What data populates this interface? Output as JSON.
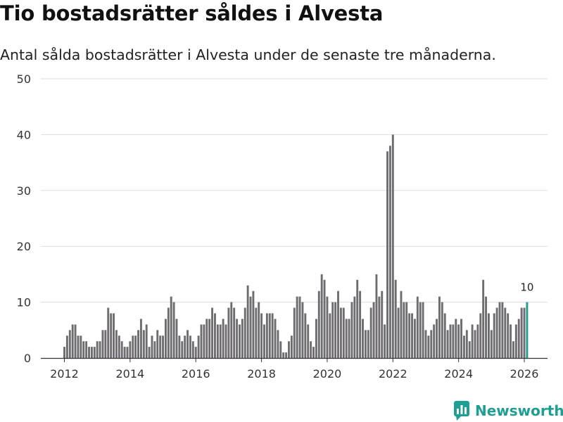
{
  "title": "Tio bostadsrätter såldes i Alvesta",
  "subtitle": "Antal sålda bostadsrätter i Alvesta under de senaste tre månaderna.",
  "brand": {
    "name": "Newsworthy",
    "icon": "newsworthy-logo-icon"
  },
  "colors": {
    "bar": "#6e6c70",
    "highlight": "#1f9e93",
    "grid": "#dddddd",
    "axis": "#333333"
  },
  "chart_data": {
    "type": "bar",
    "title": "Tio bostadsrätter såldes i Alvesta",
    "xlabel": "",
    "ylabel": "",
    "ylim": [
      0,
      50
    ],
    "yticks": [
      0,
      10,
      20,
      30,
      40,
      50
    ],
    "xticks": [
      {
        "label": "2012",
        "index": 0
      },
      {
        "label": "2014",
        "index": 24
      },
      {
        "label": "2016",
        "index": 48
      },
      {
        "label": "2018",
        "index": 72
      },
      {
        "label": "2020",
        "index": 96
      },
      {
        "label": "2022",
        "index": 120
      },
      {
        "label": "2024",
        "index": 144
      },
      {
        "label": "2026",
        "index": 168
      }
    ],
    "period_unit": "month",
    "start_period": "2012-01",
    "values": [
      2,
      4,
      5,
      6,
      6,
      4,
      4,
      3,
      3,
      2,
      2,
      2,
      3,
      3,
      5,
      5,
      9,
      8,
      8,
      5,
      4,
      3,
      2,
      2,
      3,
      4,
      4,
      5,
      7,
      5,
      6,
      2,
      4,
      3,
      5,
      4,
      4,
      7,
      9,
      11,
      10,
      7,
      4,
      3,
      4,
      5,
      4,
      3,
      2,
      4,
      6,
      6,
      7,
      7,
      9,
      8,
      6,
      6,
      7,
      6,
      9,
      10,
      9,
      7,
      6,
      7,
      9,
      13,
      11,
      12,
      9,
      10,
      8,
      6,
      8,
      8,
      8,
      7,
      5,
      3,
      1,
      1,
      3,
      4,
      9,
      11,
      11,
      10,
      8,
      6,
      3,
      2,
      7,
      12,
      15,
      14,
      11,
      8,
      10,
      10,
      12,
      9,
      9,
      7,
      7,
      10,
      11,
      14,
      12,
      7,
      5,
      5,
      9,
      10,
      15,
      11,
      12,
      6,
      37,
      38,
      40,
      14,
      9,
      12,
      10,
      10,
      8,
      8,
      7,
      11,
      10,
      10,
      5,
      4,
      5,
      6,
      7,
      11,
      10,
      8,
      5,
      6,
      6,
      7,
      6,
      7,
      4,
      5,
      3,
      6,
      5,
      6,
      8,
      14,
      11,
      8,
      5,
      8,
      9,
      10,
      10,
      9,
      8,
      6,
      3,
      6,
      7,
      9,
      9,
      10
    ],
    "highlight_last": true,
    "annotations": [
      {
        "index": 169,
        "text": "10"
      }
    ]
  }
}
